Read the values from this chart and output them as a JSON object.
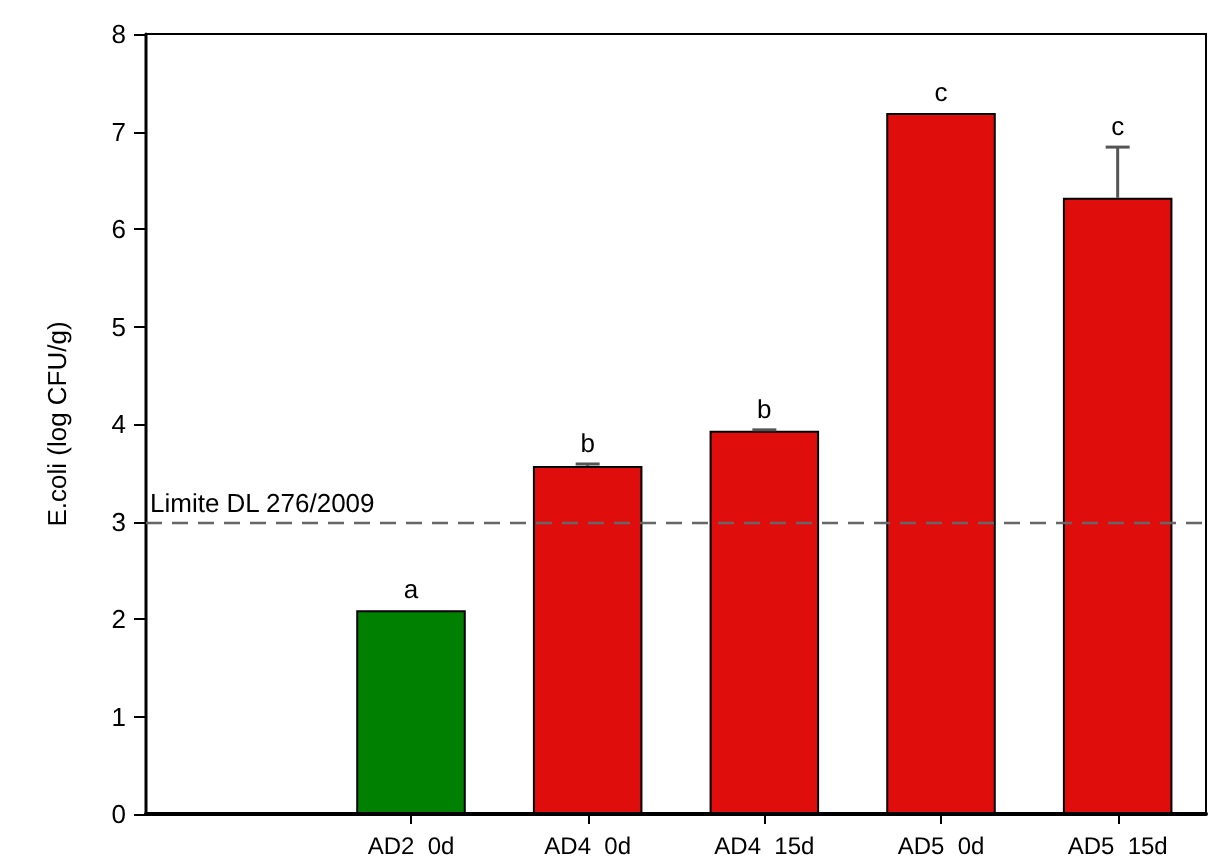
{
  "chart_data": {
    "type": "bar",
    "ylabel": "E.coli (log CFU/g)",
    "categories": [
      "AD2  0d",
      "AD4  0d",
      "AD4  15d",
      "AD5  0d",
      "AD5  15d"
    ],
    "values": [
      2.09,
      3.57,
      3.93,
      7.19,
      6.32
    ],
    "colors": [
      "#008000",
      "#e00d0d",
      "#e00d0d",
      "#e00d0d",
      "#e00d0d"
    ],
    "errors": [
      null,
      [
        3.57,
        3.59
      ],
      [
        3.93,
        3.94
      ],
      null,
      [
        6.32,
        6.84
      ]
    ],
    "ylim": [
      0,
      8
    ],
    "yticks": [
      0,
      1,
      2,
      3,
      4,
      5,
      6,
      7,
      8
    ],
    "grid": false,
    "ref_lines": [
      {
        "axis": "y",
        "value": 3,
        "label": "Limite DL 276/2009",
        "color": "#666666",
        "line_style": "dashed"
      }
    ],
    "annotations": [
      {
        "text": "a",
        "x": "AD2  0d",
        "y": 2.09
      },
      {
        "text": "b",
        "x": "AD4  0d",
        "y": 3.59
      },
      {
        "text": "b",
        "x": "AD4  15d",
        "y": 3.94
      },
      {
        "text": "c",
        "x": "AD5  0d",
        "y": 7.19
      },
      {
        "text": "c",
        "x": "AD5  15d",
        "y": 6.84
      }
    ]
  }
}
